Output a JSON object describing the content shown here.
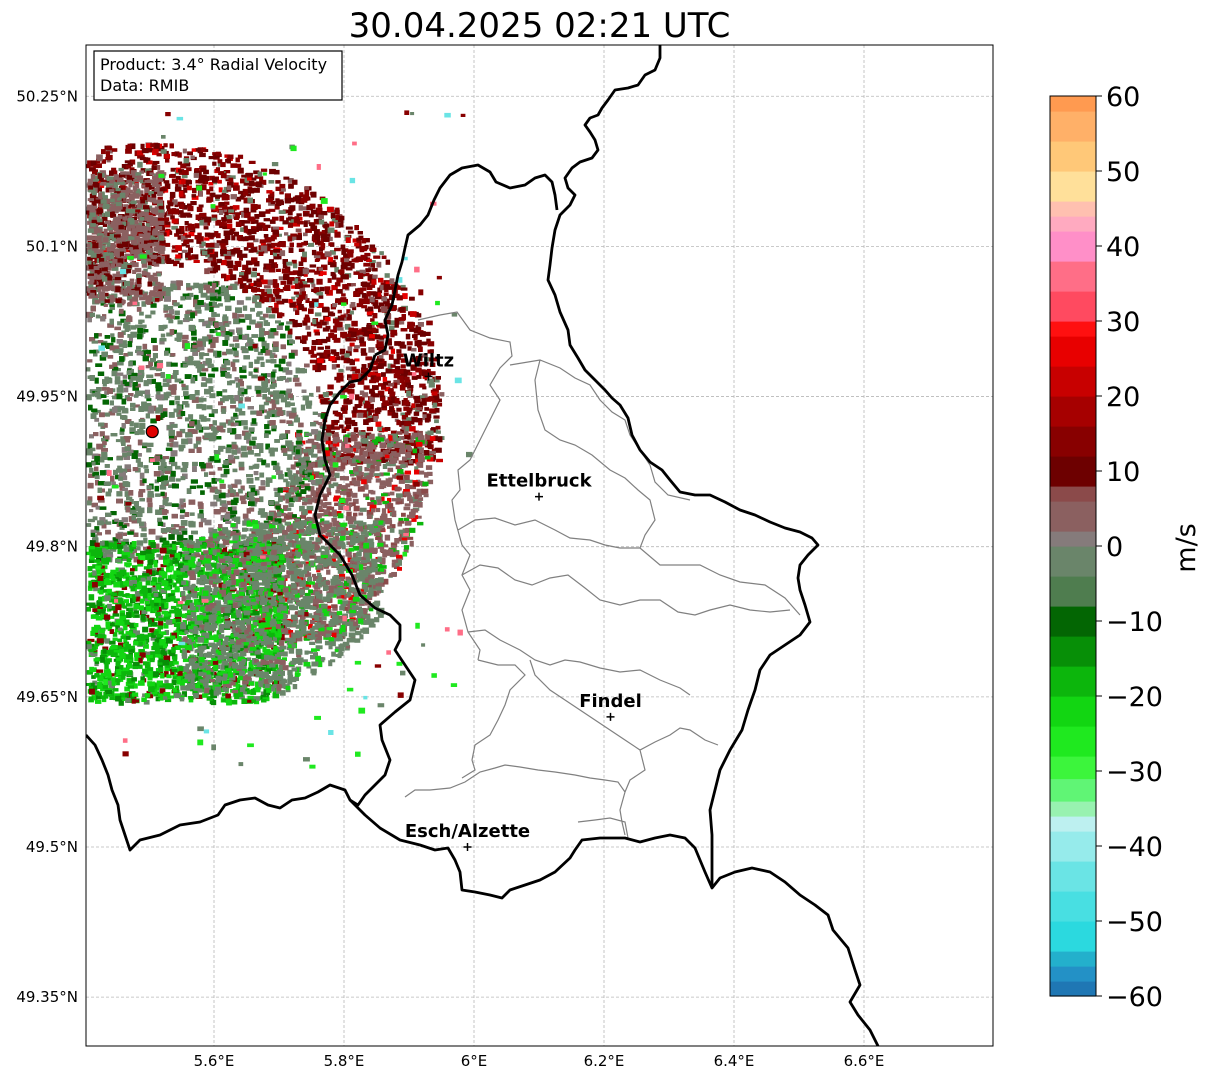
{
  "title": "30.04.2025 02:21 UTC",
  "info": {
    "product": "Product: 3.4° Radial Velocity",
    "data": "Data: RMIB"
  },
  "map": {
    "lon_range": [
      5.4,
      6.8
    ],
    "lat_range": [
      49.33,
      50.3
    ],
    "lat_ticks": [
      {
        "value": 50.25,
        "label": "50.25°N"
      },
      {
        "value": 50.1,
        "label": "50.1°N"
      },
      {
        "value": 49.95,
        "label": "49.95°N"
      },
      {
        "value": 49.8,
        "label": "49.8°N"
      },
      {
        "value": 49.65,
        "label": "49.65°N"
      },
      {
        "value": 49.5,
        "label": "49.5°N"
      },
      {
        "value": 49.35,
        "label": "49.35°N"
      }
    ],
    "lon_ticks": [
      {
        "value": 5.6,
        "label": "5.6°E"
      },
      {
        "value": 5.8,
        "label": "5.8°E"
      },
      {
        "value": 6.0,
        "label": "6°E"
      },
      {
        "value": 6.2,
        "label": "6.2°E"
      },
      {
        "value": 6.4,
        "label": "6.4°E"
      },
      {
        "value": 6.6,
        "label": "6.6°E"
      }
    ],
    "grid": true,
    "cities": [
      {
        "name": "Wiltz",
        "lon": 5.93,
        "lat": 49.97
      },
      {
        "name": "Ettelbruck",
        "lon": 6.1,
        "lat": 49.85
      },
      {
        "name": "Findel",
        "lon": 6.21,
        "lat": 49.63
      },
      {
        "name": "Esch/Alzette",
        "lon": 5.99,
        "lat": 49.5
      }
    ],
    "radar_site": {
      "lon": 5.505,
      "lat": 49.915,
      "color": "#e00000"
    }
  },
  "colorbar": {
    "label": "m/s",
    "range": [
      -60,
      60
    ],
    "ticks": [
      {
        "value": 60,
        "label": "60"
      },
      {
        "value": 50,
        "label": "50"
      },
      {
        "value": 40,
        "label": "40"
      },
      {
        "value": 30,
        "label": "30"
      },
      {
        "value": 20,
        "label": "20"
      },
      {
        "value": 10,
        "label": "10"
      },
      {
        "value": 0,
        "label": "0"
      },
      {
        "value": -10,
        "label": "−10"
      },
      {
        "value": -20,
        "label": "−20"
      },
      {
        "value": -30,
        "label": "−30"
      },
      {
        "value": -40,
        "label": "−40"
      },
      {
        "value": -50,
        "label": "−50"
      },
      {
        "value": -60,
        "label": "−60"
      }
    ],
    "stops": [
      {
        "from": -60,
        "to": -58,
        "color": "#1f77b4"
      },
      {
        "from": -58,
        "to": -56,
        "color": "#2391c6"
      },
      {
        "from": -56,
        "to": -54,
        "color": "#23b0cc"
      },
      {
        "from": -54,
        "to": -50,
        "color": "#2bd9df"
      },
      {
        "from": -50,
        "to": -46,
        "color": "#48dfe2"
      },
      {
        "from": -46,
        "to": -42,
        "color": "#6ae4e5"
      },
      {
        "from": -42,
        "to": -38,
        "color": "#96ebeb"
      },
      {
        "from": -38,
        "to": -36,
        "color": "#bdf0f0"
      },
      {
        "from": -36,
        "to": -34,
        "color": "#98f2b0"
      },
      {
        "from": -34,
        "to": -31,
        "color": "#60f575"
      },
      {
        "from": -31,
        "to": -28,
        "color": "#3cf53c"
      },
      {
        "from": -28,
        "to": -24,
        "color": "#1fe91f"
      },
      {
        "from": -24,
        "to": -20,
        "color": "#12d612"
      },
      {
        "from": -20,
        "to": -16,
        "color": "#0cb60c"
      },
      {
        "from": -16,
        "to": -12,
        "color": "#078f07"
      },
      {
        "from": -12,
        "to": -8,
        "color": "#036603"
      },
      {
        "from": -8,
        "to": -4,
        "color": "#4f7d4f"
      },
      {
        "from": -4,
        "to": 0,
        "color": "#6a856a"
      },
      {
        "from": 0,
        "to": 2,
        "color": "#857b7b"
      },
      {
        "from": 2,
        "to": 6,
        "color": "#8b6060"
      },
      {
        "from": 6,
        "to": 8,
        "color": "#8b4a4a"
      },
      {
        "from": 8,
        "to": 12,
        "color": "#6d0000"
      },
      {
        "from": 12,
        "to": 16,
        "color": "#880000"
      },
      {
        "from": 16,
        "to": 20,
        "color": "#a60000"
      },
      {
        "from": 20,
        "to": 24,
        "color": "#c80000"
      },
      {
        "from": 24,
        "to": 28,
        "color": "#e80000"
      },
      {
        "from": 28,
        "to": 30,
        "color": "#ff1010"
      },
      {
        "from": 30,
        "to": 34,
        "color": "#ff4a60"
      },
      {
        "from": 34,
        "to": 38,
        "color": "#ff6e87"
      },
      {
        "from": 38,
        "to": 42,
        "color": "#ff8fc8"
      },
      {
        "from": 42,
        "to": 44,
        "color": "#ffaac0"
      },
      {
        "from": 44,
        "to": 46,
        "color": "#ffc0b0"
      },
      {
        "from": 46,
        "to": 50,
        "color": "#ffe09a"
      },
      {
        "from": 50,
        "to": 54,
        "color": "#ffc878"
      },
      {
        "from": 54,
        "to": 58,
        "color": "#ffb068"
      },
      {
        "from": 58,
        "to": 60,
        "color": "#ff9a50"
      }
    ]
  }
}
